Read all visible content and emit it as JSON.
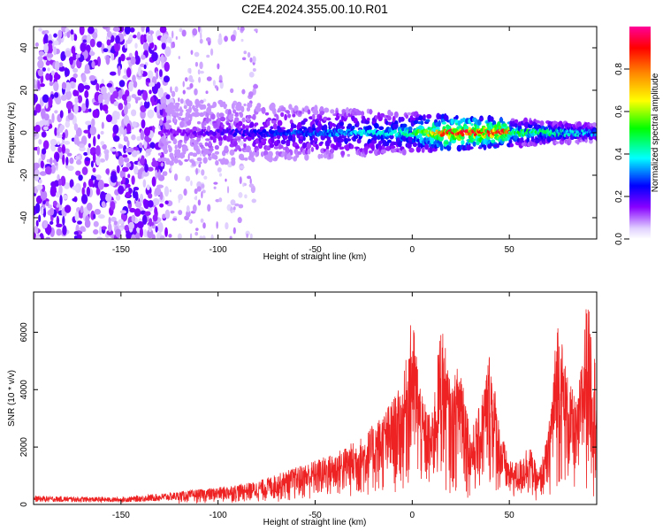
{
  "chart_data": [
    {
      "type": "heatmap",
      "title": "C2E4.2024.355.00.10.R01",
      "xlabel": "Height of straight line (km)",
      "ylabel": "Frequency (Hz)",
      "xlim": [
        -195,
        95
      ],
      "ylim": [
        -50,
        50
      ],
      "xticks": [
        "-150",
        "-100",
        "-50",
        "0",
        "50"
      ],
      "yticks": [
        "-40",
        "-20",
        "0",
        "20",
        "40"
      ],
      "grid": false,
      "colorbar": {
        "label": "Normalized spectral amplitude",
        "range": [
          0,
          1
        ],
        "ticks": [
          "0.0",
          "0.2",
          "0.4",
          "0.6",
          "0.8"
        ],
        "colors": [
          "#e6e6ff",
          "#8800ff",
          "#0000ff",
          "#00ffff",
          "#00ff00",
          "#ffff00",
          "#ff8800",
          "#ff0000",
          "#ff00aa"
        ]
      },
      "description_of_structure": {
        "noise_region_km": [
          -195,
          -125
        ],
        "sparse_region_km": [
          -125,
          -80
        ],
        "signal_band_center_hz": 0,
        "signal_band_halfwidth_hz_at_-110km": 15,
        "signal_band_halfwidth_hz_at_90km": 4,
        "peak_amplitude_region_km": [
          15,
          50
        ]
      }
    },
    {
      "type": "line",
      "title": "",
      "xlabel": "Height of straight line (km)",
      "ylabel": "SNR (10 * v/v)",
      "xlim": [
        -195,
        95
      ],
      "ylim": [
        0,
        7400
      ],
      "xticks": [
        "-150",
        "-100",
        "-50",
        "0",
        "50"
      ],
      "yticks": [
        "0",
        "2000",
        "4000",
        "6000"
      ],
      "grid": false,
      "series": [
        {
          "color": "#ee2222",
          "envelope_x": [
            -195,
            -150,
            -120,
            -100,
            -80,
            -60,
            -40,
            -25,
            -15,
            -5,
            0,
            5,
            10,
            15,
            20,
            25,
            30,
            35,
            40,
            45,
            50,
            55,
            60,
            65,
            70,
            75,
            80,
            85,
            90,
            95
          ],
          "envelope_y": [
            300,
            250,
            450,
            600,
            800,
            1300,
            1800,
            2400,
            3200,
            4200,
            6700,
            3800,
            3000,
            6500,
            4000,
            5300,
            2500,
            3500,
            5500,
            2800,
            1500,
            1500,
            2200,
            1100,
            2500,
            6700,
            4500,
            3500,
            7300,
            4800
          ]
        }
      ]
    }
  ]
}
